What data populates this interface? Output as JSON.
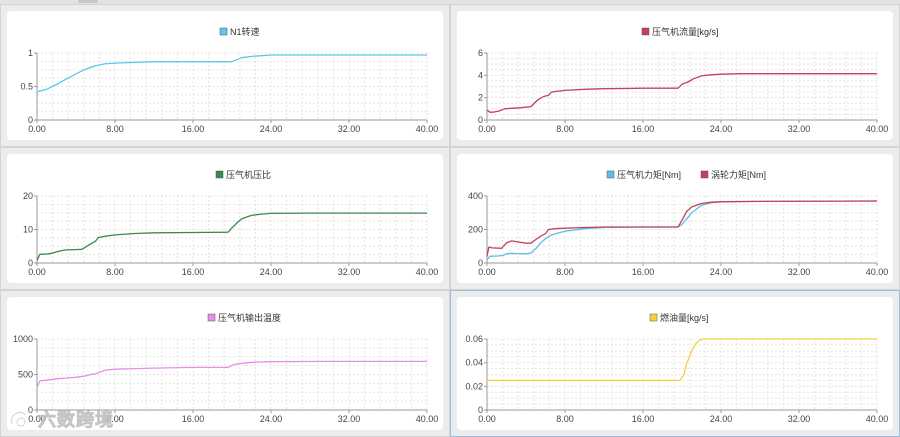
{
  "watermark": {
    "text": "六数跨境"
  },
  "chart_data": [
    {
      "type": "line",
      "title": "",
      "legend": [
        "N1转速"
      ],
      "x_range": [
        0,
        40
      ],
      "x_ticks": [
        "0.00",
        "8.00",
        "16.00",
        "24.00",
        "32.00",
        "40.00"
      ],
      "ylim": [
        0,
        1
      ],
      "y_ticks": [
        "0",
        "0.5",
        "1"
      ],
      "series": [
        {
          "name": "N1转速",
          "color": "#5bc8e8",
          "x": [
            0,
            1,
            2,
            3,
            4,
            5,
            6,
            7,
            8,
            10,
            12,
            16,
            19,
            20,
            20.5,
            21,
            22,
            23,
            24,
            28,
            32,
            36,
            40
          ],
          "y": [
            0.42,
            0.46,
            0.53,
            0.61,
            0.69,
            0.76,
            0.81,
            0.84,
            0.85,
            0.86,
            0.87,
            0.87,
            0.87,
            0.87,
            0.9,
            0.93,
            0.95,
            0.96,
            0.97,
            0.97,
            0.97,
            0.97,
            0.97
          ]
        }
      ]
    },
    {
      "type": "line",
      "title": "",
      "legend": [
        "压气机流量[kg/s]"
      ],
      "x_range": [
        0,
        40
      ],
      "x_ticks": [
        "0.00",
        "8.00",
        "16.00",
        "24.00",
        "32.00",
        "40.00"
      ],
      "ylim": [
        0,
        6
      ],
      "y_ticks": [
        "0",
        "2",
        "4",
        "6"
      ],
      "series": [
        {
          "name": "压气机流量[kg/s]",
          "color": "#c7405a",
          "x": [
            0,
            0.3,
            0.6,
            1.2,
            1.8,
            2.5,
            3.5,
            4.5,
            5.2,
            5.8,
            6.3,
            6.6,
            7,
            8,
            10,
            12,
            16,
            19.6,
            20,
            20.6,
            21.2,
            22,
            23,
            24,
            26,
            32,
            40
          ],
          "y": [
            0.9,
            0.7,
            0.7,
            0.8,
            1.0,
            1.05,
            1.1,
            1.2,
            1.8,
            2.1,
            2.2,
            2.5,
            2.55,
            2.65,
            2.75,
            2.8,
            2.85,
            2.85,
            3.2,
            3.4,
            3.7,
            3.95,
            4.05,
            4.1,
            4.15,
            4.15,
            4.15
          ]
        }
      ]
    },
    {
      "type": "line",
      "title": "",
      "legend": [
        "压气机压比"
      ],
      "x_range": [
        0,
        40
      ],
      "x_ticks": [
        "0.00",
        "8.00",
        "16.00",
        "24.00",
        "32.00",
        "40.00"
      ],
      "ylim": [
        0,
        20
      ],
      "y_ticks": [
        "0",
        "10",
        "20"
      ],
      "series": [
        {
          "name": "压气机压比",
          "color": "#3a8a4e",
          "x": [
            0,
            0.3,
            1,
            1.5,
            2,
            2.5,
            3,
            4,
            4.6,
            5,
            5.5,
            6,
            6.3,
            7,
            8,
            10,
            12,
            16,
            19.6,
            20,
            20.6,
            21,
            22,
            23,
            24,
            28,
            40
          ],
          "y": [
            0.8,
            2.6,
            2.7,
            2.9,
            3.3,
            3.7,
            3.9,
            4.0,
            4.1,
            4.8,
            5.7,
            6.5,
            7.6,
            8.0,
            8.4,
            8.8,
            9.0,
            9.1,
            9.2,
            10.5,
            12.2,
            13.2,
            14.2,
            14.6,
            14.8,
            14.9,
            14.9
          ]
        }
      ]
    },
    {
      "type": "line",
      "title": "",
      "legend": [
        "压气机力矩[Nm]",
        "涡轮力矩[Nm]"
      ],
      "x_range": [
        0,
        40
      ],
      "x_ticks": [
        "0.00",
        "8.00",
        "16.00",
        "24.00",
        "32.00",
        "40.00"
      ],
      "ylim": [
        0,
        400
      ],
      "y_ticks": [
        "0",
        "200",
        "400"
      ],
      "series": [
        {
          "name": "压气机力矩[Nm]",
          "color": "#5bc0e8",
          "x": [
            0,
            0.3,
            1,
            1.6,
            2,
            2.5,
            3,
            4,
            4.5,
            5,
            5.5,
            6,
            6.5,
            7,
            8,
            10,
            12,
            16,
            19.6,
            20,
            20.5,
            21,
            22,
            23,
            24,
            28,
            40
          ],
          "y": [
            20,
            40,
            42,
            45,
            55,
            58,
            56,
            55,
            60,
            85,
            120,
            145,
            165,
            175,
            190,
            205,
            212,
            215,
            215,
            230,
            265,
            300,
            345,
            360,
            365,
            368,
            370
          ]
        },
        {
          "name": "涡轮力矩[Nm]",
          "color": "#c7405a",
          "x": [
            0,
            0.2,
            0.5,
            1.5,
            2,
            2.5,
            3,
            4,
            4.5,
            5,
            5.5,
            6,
            6.3,
            7,
            8,
            10,
            12,
            16,
            19.6,
            20,
            20.5,
            21,
            22,
            23,
            24,
            28,
            40
          ],
          "y": [
            40,
            95,
            90,
            88,
            120,
            132,
            128,
            118,
            118,
            140,
            160,
            175,
            200,
            205,
            208,
            212,
            215,
            215,
            215,
            255,
            310,
            335,
            355,
            363,
            366,
            368,
            370
          ]
        }
      ]
    },
    {
      "type": "line",
      "title": "",
      "legend": [
        "压气机输出温度"
      ],
      "x_range": [
        0,
        40
      ],
      "x_ticks": [
        "0.00",
        "8.00",
        "16.00",
        "24.00",
        "32.00",
        "40.00"
      ],
      "ylim": [
        0,
        1000
      ],
      "y_ticks": [
        "0",
        "500",
        "1000"
      ],
      "series": [
        {
          "name": "压气机输出温度",
          "color": "#e78fe8",
          "x": [
            0,
            0.3,
            1,
            2,
            3,
            4,
            5,
            5.5,
            6,
            7,
            8,
            12,
            16,
            19.6,
            20,
            20.6,
            21.5,
            22.5,
            24,
            30,
            40
          ],
          "y": [
            320,
            410,
            420,
            440,
            450,
            460,
            480,
            500,
            510,
            560,
            575,
            590,
            600,
            600,
            630,
            650,
            665,
            675,
            680,
            685,
            685
          ]
        }
      ]
    },
    {
      "type": "line",
      "title": "",
      "legend": [
        "燃油量[kg/s]"
      ],
      "x_range": [
        0,
        40
      ],
      "x_ticks": [
        "0.00",
        "8.00",
        "16.00",
        "24.00",
        "32.00",
        "40.00"
      ],
      "ylim": [
        0,
        0.06
      ],
      "y_ticks": [
        "0",
        "0.02",
        "0.04",
        "0.06"
      ],
      "series": [
        {
          "name": "燃油量[kg/s]",
          "color": "#f4d03f",
          "x": [
            0,
            19.8,
            20.2,
            20.5,
            21,
            21.4,
            21.8,
            22.2,
            23,
            40
          ],
          "y": [
            0.025,
            0.025,
            0.03,
            0.04,
            0.05,
            0.056,
            0.059,
            0.06,
            0.06,
            0.06
          ]
        }
      ]
    }
  ]
}
